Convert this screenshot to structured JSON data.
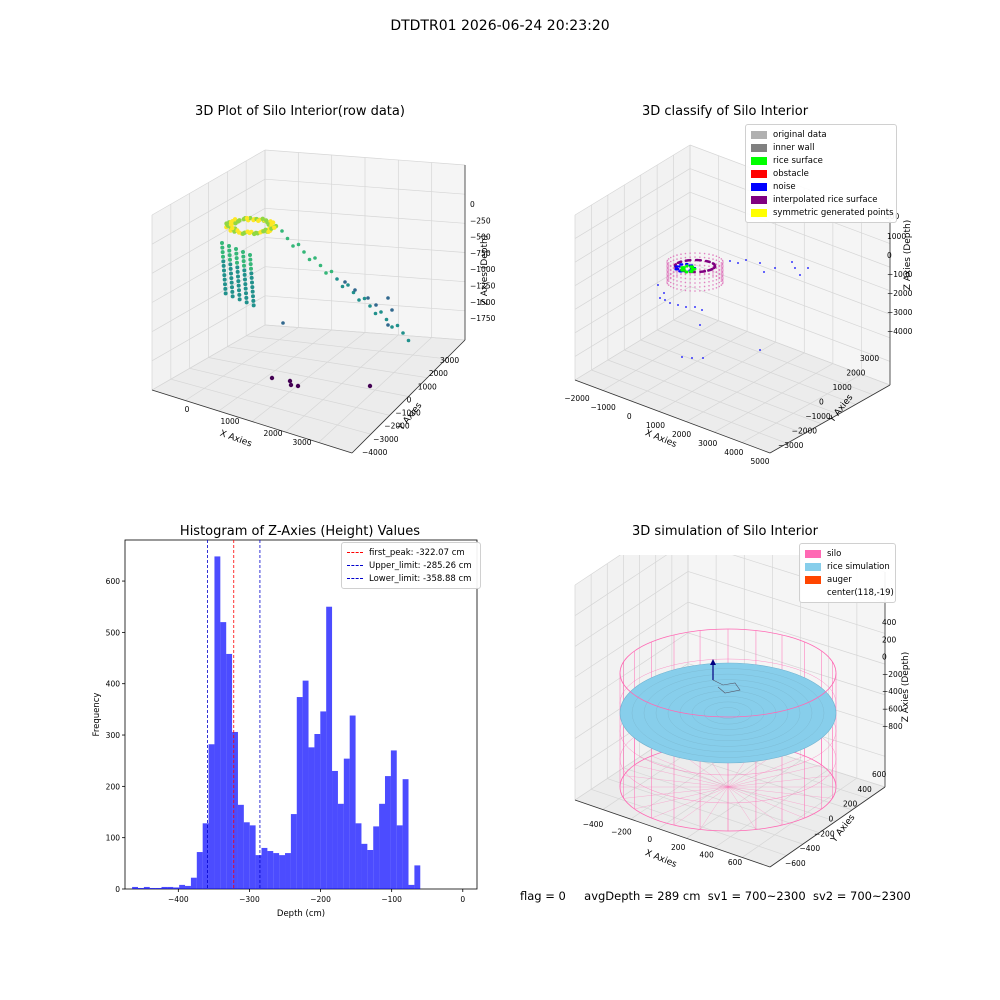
{
  "figure": {
    "suptitle": "DTDTR01 2026-06-24 20:23:20",
    "status": {
      "flag": "flag = 0",
      "avg_depth": "avgDepth = 289 cm",
      "sv1": "sv1 = 700~2300",
      "sv2": "sv2 = 700~2300"
    }
  },
  "chart_data": [
    {
      "type": "scatter",
      "title": "3D Plot of Silo Interior(row data)",
      "xlabel": "X Axies",
      "ylabel": "Y Axies",
      "zlabel": "Z Axies (Depth)",
      "x_ticks": [
        "0",
        "1000",
        "2000",
        "3000"
      ],
      "y_ticks": [
        "−4000",
        "−3000",
        "−2000",
        "−1000",
        "0",
        "1000",
        "2000",
        "3000"
      ],
      "z_ticks": [
        "0",
        "−250",
        "−500",
        "−750",
        "−1000",
        "−1250",
        "−1500",
        "−1750"
      ],
      "colormap": [
        "#440154",
        "#31688e",
        "#21918c",
        "#35b779",
        "#90d743",
        "#fde725"
      ],
      "grid": true
    },
    {
      "type": "scatter",
      "title": "3D classify of Silo Interior",
      "xlabel": "X Axies",
      "ylabel": "Y Axies",
      "zlabel": "Z Axies (Depth)",
      "x_ticks": [
        "−2000",
        "−1000",
        "0",
        "1000",
        "2000",
        "3000",
        "4000",
        "5000"
      ],
      "y_ticks": [
        "−3000",
        "−2000",
        "−1000",
        "0",
        "1000",
        "2000",
        "3000"
      ],
      "z_ticks": [
        "1000",
        "0",
        "−1000",
        "−2000",
        "−3000",
        "−4000"
      ],
      "z_ticks_partial": [
        "000"
      ],
      "legend_position": "top-right",
      "legend": [
        {
          "label": "original data",
          "color": "#b0b0b0"
        },
        {
          "label": "inner wall",
          "color": "#808080"
        },
        {
          "label": "rice surface",
          "color": "#00ff00"
        },
        {
          "label": "obstacle",
          "color": "#ff0000"
        },
        {
          "label": "noise",
          "color": "#0000ff"
        },
        {
          "label": "interpolated rice surface",
          "color": "#800080"
        },
        {
          "label": "symmetric generated points",
          "color": "#ffff00"
        }
      ],
      "grid": true
    },
    {
      "type": "bar",
      "subtype": "histogram",
      "title": "Histogram of Z-Axies (Height) Values",
      "xlabel": "Depth (cm)",
      "ylabel": "Frequency",
      "xlim": [
        -475,
        20
      ],
      "ylim": [
        0,
        680
      ],
      "x_ticks": [
        -400,
        -300,
        -200,
        -100,
        0
      ],
      "x_tick_labels": [
        "−400",
        "−300",
        "−200",
        "−100",
        "0"
      ],
      "y_ticks": [
        0,
        100,
        200,
        300,
        400,
        500,
        600
      ],
      "bar_color": "#0000ff",
      "bar_alpha": 0.7,
      "bin_edges_start": -465,
      "bin_width": 8.27,
      "values": [
        4,
        2,
        4,
        2,
        2,
        4,
        4,
        3,
        8,
        6,
        22,
        72,
        128,
        282,
        648,
        520,
        458,
        306,
        164,
        130,
        124,
        66,
        80,
        74,
        70,
        66,
        70,
        146,
        374,
        406,
        276,
        302,
        346,
        550,
        230,
        166,
        254,
        338,
        128,
        88,
        76,
        122,
        166,
        220,
        270,
        124,
        214,
        8,
        46
      ],
      "vlines": [
        {
          "x": -322.07,
          "label": "first_peak: -322.07 cm",
          "color": "#ff0000"
        },
        {
          "x": -285.26,
          "label": "Upper_limit: -285.26 cm",
          "color": "#0000cd"
        },
        {
          "x": -358.88,
          "label": "Lower_limit: -358.88 cm",
          "color": "#0000cd"
        }
      ],
      "legend_position": "top-right",
      "grid": false
    },
    {
      "type": "scatter",
      "title": "3D simulation of Silo Interior",
      "xlabel": "X Axies",
      "ylabel": "Y Axies",
      "zlabel": "Z Axies (Depth)",
      "x_ticks": [
        "−400",
        "−200",
        "0",
        "200",
        "400",
        "600"
      ],
      "y_ticks": [
        "−600",
        "−400",
        "−200",
        "0",
        "200",
        "400",
        "600"
      ],
      "z_ticks": [
        "400",
        "200",
        "0",
        "−200",
        "−400",
        "−600",
        "−800"
      ],
      "legend_position": "top-right",
      "legend": [
        {
          "label": "silo",
          "color": "#ff69b4"
        },
        {
          "label": "rice simulation",
          "color": "#87ceeb"
        },
        {
          "label": "auger",
          "color": "#ff4500"
        },
        {
          "label": "center(118,-19)",
          "color": "none"
        }
      ],
      "grid": true
    }
  ]
}
